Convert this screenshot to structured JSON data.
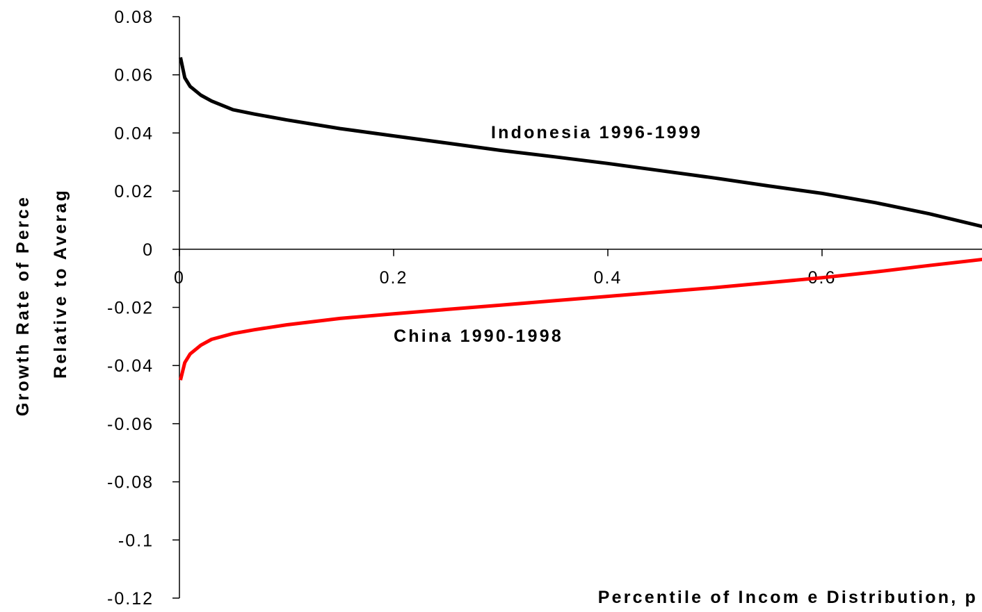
{
  "chart_data": {
    "type": "line",
    "title": "",
    "xlabel": "Percentile of Incom e Distribution, p",
    "ylabel_lines": [
      "Growth Rate of Perce",
      "Relative to Averag"
    ],
    "xlim": [
      0,
      0.75
    ],
    "ylim": [
      -0.12,
      0.08
    ],
    "x_ticks": [
      {
        "value": 0,
        "label": "0"
      },
      {
        "value": 0.2,
        "label": "0.2"
      },
      {
        "value": 0.4,
        "label": "0.4"
      },
      {
        "value": 0.6,
        "label": "0.6"
      }
    ],
    "y_ticks": [
      {
        "value": 0.08,
        "label": "0.08"
      },
      {
        "value": 0.06,
        "label": "0.06"
      },
      {
        "value": 0.04,
        "label": "0.04"
      },
      {
        "value": 0.02,
        "label": "0.02"
      },
      {
        "value": 0,
        "label": "0"
      },
      {
        "value": -0.02,
        "label": "-0.02"
      },
      {
        "value": -0.04,
        "label": "-0.04"
      },
      {
        "value": -0.06,
        "label": "-0.06"
      },
      {
        "value": -0.08,
        "label": "-0.08"
      },
      {
        "value": -0.1,
        "label": "-0.1"
      },
      {
        "value": -0.12,
        "label": "-0.12"
      }
    ],
    "grid": false,
    "legend": "none",
    "series": [
      {
        "name": "Indonesia 1996-1999",
        "color": "#000000",
        "x": [
          0.001,
          0.005,
          0.01,
          0.02,
          0.03,
          0.05,
          0.07,
          0.1,
          0.15,
          0.2,
          0.25,
          0.3,
          0.35,
          0.4,
          0.45,
          0.5,
          0.55,
          0.6,
          0.65,
          0.7,
          0.75
        ],
        "y": [
          0.066,
          0.059,
          0.056,
          0.053,
          0.051,
          0.048,
          0.0465,
          0.0445,
          0.0415,
          0.039,
          0.0365,
          0.034,
          0.0318,
          0.0295,
          0.027,
          0.0245,
          0.0218,
          0.0192,
          0.016,
          0.0122,
          0.0078
        ]
      },
      {
        "name": "China 1990-1998",
        "color": "#ff0000",
        "x": [
          0.001,
          0.005,
          0.01,
          0.02,
          0.03,
          0.05,
          0.07,
          0.1,
          0.15,
          0.2,
          0.25,
          0.3,
          0.35,
          0.4,
          0.45,
          0.5,
          0.55,
          0.6,
          0.65,
          0.7,
          0.75
        ],
        "y": [
          -0.045,
          -0.039,
          -0.036,
          -0.033,
          -0.031,
          -0.029,
          -0.0277,
          -0.026,
          -0.0238,
          -0.0222,
          -0.0207,
          -0.0192,
          -0.0177,
          -0.0162,
          -0.0147,
          -0.0132,
          -0.0115,
          -0.0098,
          -0.0078,
          -0.0056,
          -0.0035
        ]
      }
    ]
  }
}
